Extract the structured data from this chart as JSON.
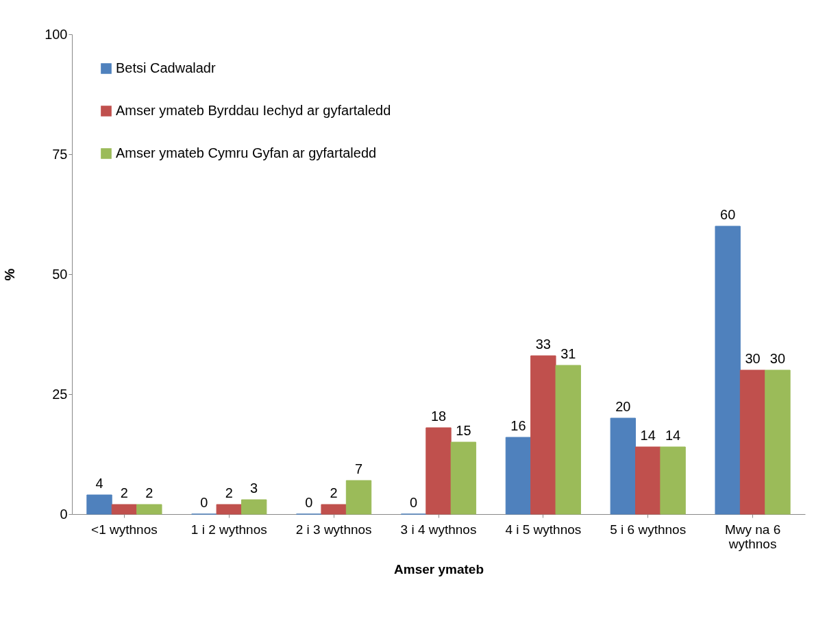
{
  "chart_data": {
    "type": "bar",
    "xlabel": "Amser ymateb",
    "ylabel": "%",
    "categories": [
      "<1 wythnos",
      "1 i 2 wythnos",
      "2 i 3 wythnos",
      "3 i 4 wythnos",
      "4 i 5 wythnos",
      "5 i 6 wythnos",
      "Mwy na 6 wythnos"
    ],
    "series": [
      {
        "name": "Betsi Cadwaladr",
        "color": "#4f81bd",
        "values": [
          4,
          0,
          0,
          0,
          16,
          20,
          60
        ]
      },
      {
        "name": "Amser ymateb Byrddau Iechyd ar gyfartaledd",
        "color": "#c0504d",
        "values": [
          2,
          2,
          2,
          18,
          33,
          14,
          30
        ]
      },
      {
        "name": "Amser ymateb Cymru Gyfan ar gyfartaledd",
        "color": "#9bbb59",
        "values": [
          2,
          3,
          7,
          15,
          31,
          14,
          30
        ]
      }
    ],
    "ylim": [
      0,
      100
    ],
    "yticks": [
      0,
      25,
      50,
      75,
      100
    ],
    "grid": false,
    "legend": "top left",
    "data_labels": true
  }
}
